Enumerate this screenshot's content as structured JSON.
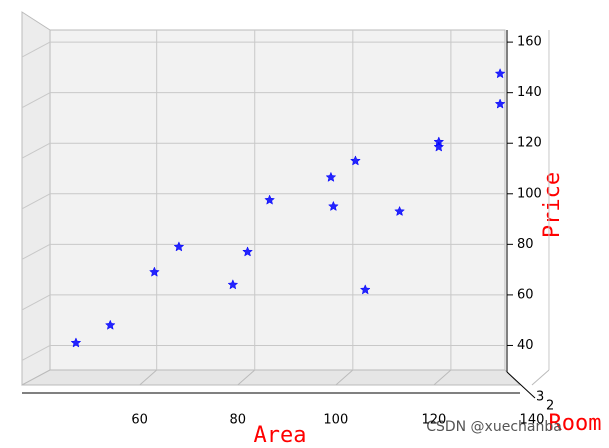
{
  "chart_data": {
    "type": "scatter",
    "xlabel": "Area",
    "ylabel": "Price",
    "room_label": "Room",
    "x": [
      47,
      54,
      63,
      68,
      79,
      82,
      86.5,
      99,
      99.5,
      104,
      106,
      113,
      121,
      121,
      133.5,
      133.5
    ],
    "series": [
      {
        "color": "#0000ff",
        "values": [
          41,
          48,
          69,
          79,
          64,
          77,
          97.5,
          106.5,
          95,
          113,
          62,
          93,
          120.5,
          118.5,
          147.5,
          135.5
        ]
      }
    ],
    "xlim": [
      36,
      150
    ],
    "xticks": [
      60,
      80,
      100,
      120,
      140
    ],
    "ylim": [
      29.5,
      164
    ],
    "yticks": [
      40,
      60,
      80,
      100,
      120,
      140,
      160
    ],
    "room_ticks": [
      3,
      2
    ],
    "grid": true,
    "watermark": "CSDN @xuechanba"
  }
}
